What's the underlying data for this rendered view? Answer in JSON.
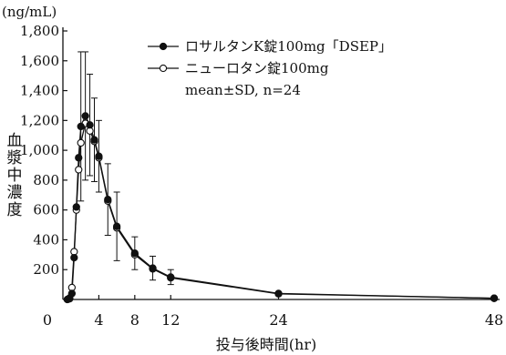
{
  "chart_data": {
    "type": "line",
    "y_unit": "(ng/mL)",
    "ylabel": "血漿中濃度",
    "xlabel": "投与後時間(hr)",
    "xlim": [
      0,
      48
    ],
    "ylim": [
      0,
      1800
    ],
    "x_ticks": [
      0,
      4,
      8,
      12,
      24,
      48
    ],
    "y_ticks": [
      200,
      400,
      600,
      800,
      1000,
      1200,
      1400,
      1600,
      1800
    ],
    "y_tick_labels": [
      "200",
      "400",
      "600",
      "800",
      "1,000",
      "1,200",
      "1,400",
      "1,600",
      "1,800"
    ],
    "series": [
      {
        "name": "ロサルタンK錠100mg「DSEP」",
        "marker": "filled-circle",
        "color": "#111111",
        "points": [
          {
            "x": 0.5,
            "y": 0,
            "sd": 0
          },
          {
            "x": 0.75,
            "y": 5,
            "sd": 0
          },
          {
            "x": 1,
            "y": 40,
            "sd": 0
          },
          {
            "x": 1.25,
            "y": 280,
            "sd": 0
          },
          {
            "x": 1.5,
            "y": 620,
            "sd": 0
          },
          {
            "x": 1.75,
            "y": 950,
            "sd": 0
          },
          {
            "x": 2,
            "y": 1160,
            "sd": 500
          },
          {
            "x": 2.5,
            "y": 1230,
            "sd": 430
          },
          {
            "x": 3,
            "y": 1170,
            "sd": 340
          },
          {
            "x": 3.5,
            "y": 1070,
            "sd": 280
          },
          {
            "x": 4,
            "y": 960,
            "sd": 240
          },
          {
            "x": 5,
            "y": 670,
            "sd": 240
          },
          {
            "x": 6,
            "y": 490,
            "sd": 230
          },
          {
            "x": 8,
            "y": 310,
            "sd": 110
          },
          {
            "x": 10,
            "y": 210,
            "sd": 80
          },
          {
            "x": 12,
            "y": 150,
            "sd": 50
          },
          {
            "x": 24,
            "y": 40,
            "sd": 0
          },
          {
            "x": 48,
            "y": 8,
            "sd": 0
          }
        ]
      },
      {
        "name": "ニューロタン錠100mg",
        "marker": "open-circle",
        "color": "#111111",
        "points": [
          {
            "x": 0.5,
            "y": 0,
            "sd": 0
          },
          {
            "x": 0.75,
            "y": 10,
            "sd": 0
          },
          {
            "x": 1,
            "y": 80,
            "sd": 0
          },
          {
            "x": 1.25,
            "y": 320,
            "sd": 0
          },
          {
            "x": 1.5,
            "y": 600,
            "sd": 0
          },
          {
            "x": 1.75,
            "y": 870,
            "sd": 0
          },
          {
            "x": 2,
            "y": 1050,
            "sd": 0
          },
          {
            "x": 2.5,
            "y": 1180,
            "sd": 0
          },
          {
            "x": 3,
            "y": 1130,
            "sd": 0
          },
          {
            "x": 3.5,
            "y": 1060,
            "sd": 0
          },
          {
            "x": 4,
            "y": 950,
            "sd": 0
          },
          {
            "x": 5,
            "y": 660,
            "sd": 0
          },
          {
            "x": 6,
            "y": 480,
            "sd": 0
          },
          {
            "x": 8,
            "y": 300,
            "sd": 0
          },
          {
            "x": 10,
            "y": 205,
            "sd": 0
          },
          {
            "x": 12,
            "y": 145,
            "sd": 0
          },
          {
            "x": 24,
            "y": 38,
            "sd": 0
          },
          {
            "x": 48,
            "y": 8,
            "sd": 0
          }
        ]
      }
    ],
    "legend": {
      "placement": "top-right",
      "note": "mean±SD, n=24"
    },
    "grid": false
  }
}
